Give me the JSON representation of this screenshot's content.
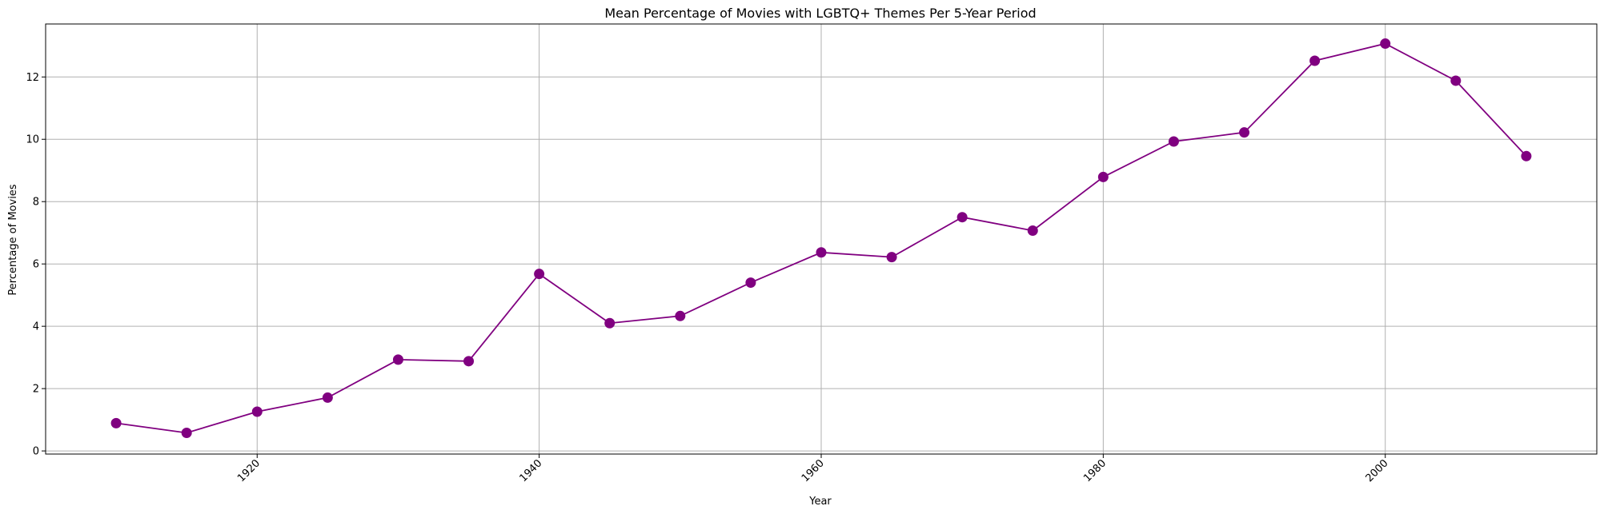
{
  "chart_data": {
    "type": "line",
    "title": "Mean Percentage of Movies with LGBTQ+ Themes Per 5-Year Period",
    "xlabel": "Year",
    "ylabel": "Percentage of Movies",
    "x": [
      1910,
      1915,
      1920,
      1925,
      1930,
      1935,
      1940,
      1945,
      1950,
      1955,
      1960,
      1965,
      1970,
      1975,
      1980,
      1985,
      1990,
      1995,
      2000,
      2005,
      2010
    ],
    "series": [
      {
        "values": [
          0.89,
          0.58,
          1.26,
          1.71,
          2.93,
          2.88,
          5.68,
          4.1,
          4.33,
          5.4,
          6.37,
          6.22,
          7.5,
          7.07,
          8.79,
          9.93,
          10.22,
          12.52,
          13.07,
          11.88,
          9.46
        ],
        "color": "#800080",
        "marker": "circle"
      }
    ],
    "xlim": [
      1905,
      2015
    ],
    "ylim": [
      -0.1,
      13.7
    ],
    "xticks": [
      "1920",
      "1940",
      "1960",
      "1980",
      "2000"
    ],
    "xtick_values": [
      1920,
      1940,
      1960,
      1980,
      2000
    ],
    "yticks": [
      "0",
      "2",
      "4",
      "6",
      "8",
      "10",
      "12"
    ],
    "ytick_values": [
      0,
      2,
      4,
      6,
      8,
      10,
      12
    ],
    "xtick_rotation": 45,
    "grid": true,
    "legend": false
  }
}
